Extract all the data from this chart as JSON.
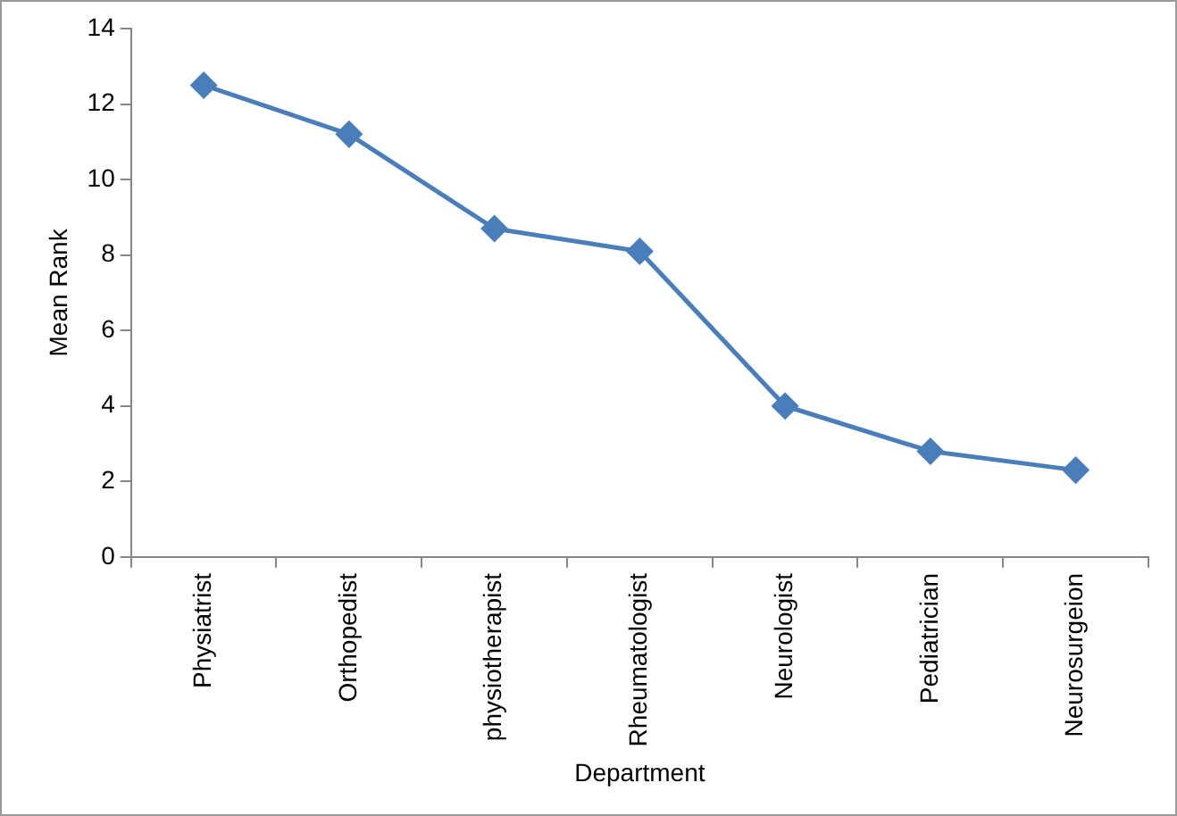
{
  "chart_data": {
    "type": "line",
    "xlabel": "Department",
    "ylabel": "Mean Rank",
    "categories": [
      "Physiatrist",
      "Orthopedist",
      "physiotherapist",
      "Rheumatologist",
      "Neurologist",
      "Pediatrician",
      "Neurosurgeion"
    ],
    "series": [
      {
        "color": "#4a7ebb",
        "values": [
          12.5,
          11.2,
          8.7,
          8.1,
          4.0,
          2.8,
          2.3
        ]
      }
    ],
    "ylim": [
      0,
      14
    ],
    "yticks": [
      0,
      2,
      4,
      6,
      8,
      10,
      12,
      14
    ],
    "grid": false,
    "legend": false,
    "marker": "diamond",
    "line_style": "solid"
  }
}
